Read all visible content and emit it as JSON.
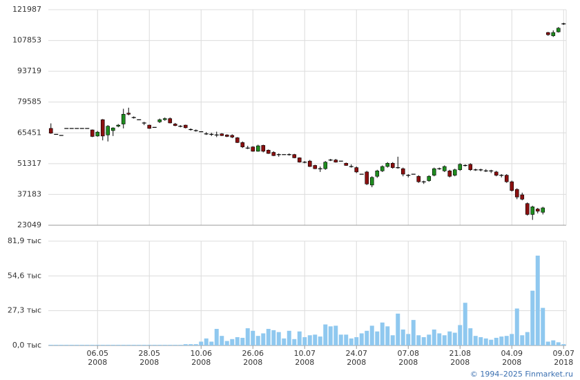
{
  "chart_data": [
    {
      "type": "candlestick",
      "up_color": "#1f8c1f",
      "down_color": "#8b1010",
      "flat_color": "#000000",
      "open": [
        67500,
        64800,
        64300,
        67500,
        67500,
        67500,
        67500,
        67500,
        66800,
        64000,
        71500,
        64500,
        66500,
        68500,
        69500,
        74500,
        72500,
        71500,
        70000,
        69000,
        68000,
        70500,
        71500,
        72000,
        69500,
        68500,
        69000,
        67000,
        66500,
        66000,
        65000,
        64800,
        64500,
        65000,
        64500,
        64300,
        63200,
        61000,
        58500,
        59000,
        57000,
        59700,
        57500,
        56500,
        55500,
        55500,
        55500,
        55500,
        54000,
        52000,
        52500,
        50500,
        49000,
        49000,
        53000,
        53000,
        52500,
        51500,
        50000,
        49500,
        46500,
        47500,
        41500,
        45500,
        48000,
        50000,
        51500,
        49500,
        49000,
        46000,
        46500,
        45500,
        43000,
        43500,
        46000,
        49000,
        48000,
        48000,
        46000,
        48500,
        50500,
        51000,
        48500,
        48500,
        48000,
        48000,
        47500,
        46000,
        46000,
        43000,
        39500,
        37000,
        33000,
        28000,
        30500,
        29000,
        111500,
        110000,
        111800,
        115500
      ],
      "high": [
        69800,
        64800,
        64300,
        67500,
        67500,
        67500,
        67500,
        67500,
        67000,
        66300,
        71800,
        69000,
        68000,
        69500,
        76500,
        77000,
        73000,
        71500,
        70500,
        69200,
        68000,
        72000,
        72500,
        72500,
        70000,
        69000,
        69200,
        67500,
        67000,
        66000,
        65800,
        65500,
        66000,
        65300,
        64800,
        64800,
        63500,
        61500,
        59500,
        59300,
        60000,
        60000,
        57800,
        57000,
        56000,
        55500,
        56000,
        55800,
        54200,
        52500,
        53000,
        50800,
        50000,
        52500,
        53500,
        53500,
        52500,
        51800,
        51000,
        50000,
        46500,
        48000,
        45500,
        48500,
        50500,
        52000,
        52000,
        54500,
        49500,
        46500,
        46500,
        46000,
        43500,
        46000,
        49500,
        49500,
        50500,
        48500,
        49000,
        51500,
        51000,
        51500,
        49000,
        49000,
        48800,
        48500,
        48000,
        46500,
        46500,
        43500,
        40000,
        38000,
        33500,
        32000,
        31000,
        31500,
        111800,
        112500,
        114000,
        116000
      ],
      "low": [
        65000,
        64800,
        64300,
        67500,
        67500,
        67500,
        67500,
        67500,
        63500,
        63700,
        62000,
        61500,
        64000,
        68000,
        67500,
        73500,
        72000,
        71500,
        69000,
        67300,
        68000,
        70000,
        71000,
        69800,
        68500,
        68000,
        67500,
        66500,
        66000,
        66000,
        64500,
        64000,
        63500,
        64000,
        63500,
        63000,
        60800,
        58500,
        58000,
        56800,
        56800,
        56500,
        55800,
        54800,
        54500,
        55500,
        55000,
        53800,
        51800,
        51500,
        49800,
        48800,
        47500,
        48500,
        52500,
        51800,
        52500,
        50300,
        49500,
        47000,
        46500,
        41500,
        40500,
        44800,
        47500,
        49500,
        49000,
        49000,
        45500,
        45000,
        46500,
        42500,
        42000,
        43000,
        45500,
        48500,
        47500,
        45000,
        45500,
        48000,
        50000,
        48000,
        48000,
        47800,
        47500,
        47000,
        45500,
        45000,
        42500,
        38500,
        35000,
        34500,
        27500,
        25500,
        28500,
        28000,
        110000,
        109500,
        111500,
        115000
      ],
      "close": [
        65300,
        64800,
        64300,
        67500,
        67500,
        67500,
        67500,
        67500,
        63800,
        65800,
        64000,
        68500,
        67700,
        69000,
        74000,
        74000,
        72500,
        71500,
        70000,
        67500,
        68000,
        71500,
        72000,
        70000,
        68800,
        68500,
        67800,
        67000,
        66500,
        66000,
        65000,
        64800,
        64500,
        64200,
        63800,
        63500,
        61000,
        59000,
        58500,
        57000,
        59500,
        57000,
        56000,
        55000,
        55500,
        55500,
        55500,
        54000,
        52000,
        52000,
        50000,
        49000,
        49000,
        52000,
        53000,
        52000,
        52500,
        50500,
        50000,
        47500,
        46500,
        42000,
        45000,
        48000,
        50000,
        51500,
        49500,
        49500,
        46500,
        46000,
        46500,
        43000,
        43000,
        45500,
        49000,
        49000,
        50000,
        45500,
        48500,
        51000,
        50500,
        48500,
        48500,
        48500,
        48000,
        48000,
        46000,
        46000,
        43000,
        39000,
        36000,
        35000,
        28000,
        31500,
        29500,
        31000,
        110500,
        111500,
        113500,
        115500
      ],
      "ylim": [
        23049,
        121987
      ],
      "yticks": [
        23049,
        37183,
        51317,
        65451,
        79585,
        93719,
        107853,
        121987
      ],
      "grid": true
    },
    {
      "type": "bar",
      "color": "#8fc8ef",
      "categories": [
        null,
        null,
        null,
        null,
        null,
        null,
        null,
        null,
        null,
        "06.05 2008",
        null,
        null,
        null,
        null,
        null,
        null,
        null,
        null,
        null,
        "28.05 2008",
        null,
        null,
        null,
        null,
        null,
        null,
        null,
        null,
        null,
        "10.06 2008",
        null,
        null,
        null,
        null,
        null,
        null,
        null,
        null,
        null,
        "26.06 2008",
        null,
        null,
        null,
        null,
        null,
        null,
        null,
        null,
        null,
        "10.07 2008",
        null,
        null,
        null,
        null,
        null,
        null,
        null,
        null,
        null,
        "24.07 2008",
        null,
        null,
        null,
        null,
        null,
        null,
        null,
        null,
        null,
        "07.08 2008",
        null,
        null,
        null,
        null,
        null,
        null,
        null,
        null,
        null,
        "21.08 2008",
        null,
        null,
        null,
        null,
        null,
        null,
        null,
        null,
        null,
        "04.09 2008",
        null,
        null,
        null,
        null,
        null,
        null,
        null,
        null,
        null,
        "09.07 2018"
      ],
      "values": [
        500,
        500,
        500,
        500,
        500,
        500,
        500,
        500,
        500,
        500,
        500,
        500,
        500,
        500,
        500,
        500,
        500,
        500,
        500,
        500,
        500,
        500,
        500,
        500,
        500,
        500,
        1000,
        1000,
        1000,
        3000,
        5500,
        3000,
        13000,
        7500,
        3500,
        5000,
        6500,
        6000,
        13500,
        11500,
        7500,
        9500,
        13000,
        12000,
        10500,
        5500,
        11500,
        5000,
        11000,
        6500,
        8000,
        8500,
        7000,
        16500,
        15000,
        15500,
        8500,
        8500,
        5500,
        6500,
        9500,
        11500,
        15500,
        11000,
        18000,
        15000,
        8000,
        25000,
        12500,
        9000,
        20000,
        8000,
        6500,
        8500,
        12500,
        9500,
        8000,
        11000,
        10000,
        16000,
        33500,
        13500,
        7500,
        6500,
        5500,
        4500,
        6000,
        7000,
        7500,
        9000,
        29000,
        8000,
        10500,
        43000,
        70500,
        29500,
        3000,
        4000,
        2500,
        1000
      ],
      "ylim": [
        0,
        81900
      ],
      "yticks": [
        {
          "value": 0,
          "label": "0,0 тыс"
        },
        {
          "value": 27300,
          "label": "27,3 тыс"
        },
        {
          "value": 54600,
          "label": "54,6 тыс"
        },
        {
          "value": 81900,
          "label": "81,9 тыс"
        }
      ],
      "grid": true
    }
  ],
  "source": "© 1994–2025 Finmarket.ru"
}
